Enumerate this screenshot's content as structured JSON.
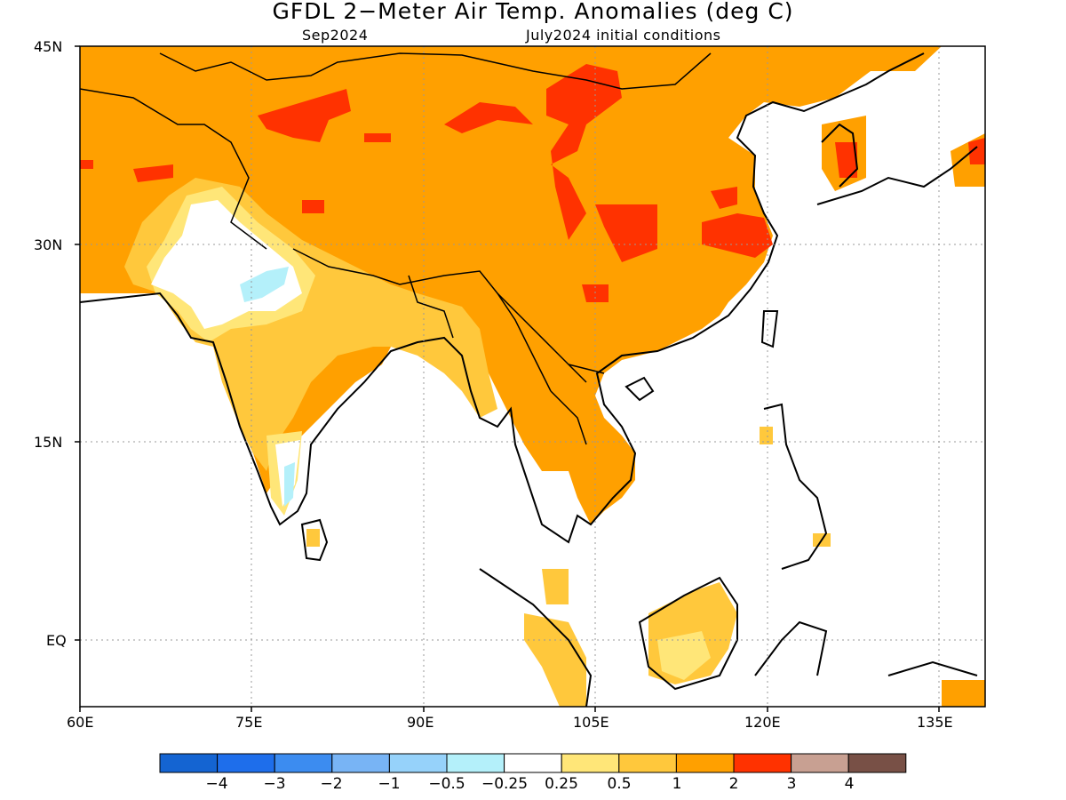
{
  "title": "GFDL 2−Meter Air Temp. Anomalies (deg C)",
  "subtitle_left": "Sep2024",
  "subtitle_right": "July2024 initial conditions",
  "map": {
    "region": "South and East Asia",
    "lon_range": [
      60,
      140
    ],
    "lat_range": [
      -5,
      45
    ],
    "lon_ticks": [
      "60E",
      "75E",
      "90E",
      "105E",
      "120E",
      "135E"
    ],
    "lat_ticks": [
      "45N",
      "30N",
      "15N",
      "EQ"
    ],
    "grid": "dotted"
  },
  "colorbar": {
    "colors": [
      "#1464d2",
      "#1e6eeb",
      "#3c8cf0",
      "#78b4f5",
      "#96d2fa",
      "#b4f0fa",
      "#ffffff",
      "#ffe678",
      "#ffc83c",
      "#ffa000",
      "#ff3200",
      "#c8a092",
      "#785046"
    ],
    "labels": [
      "−4",
      "−3",
      "−2",
      "−1",
      "−0.5",
      "−0.25",
      "0.25",
      "0.5",
      "1",
      "2",
      "3",
      "4"
    ]
  }
}
